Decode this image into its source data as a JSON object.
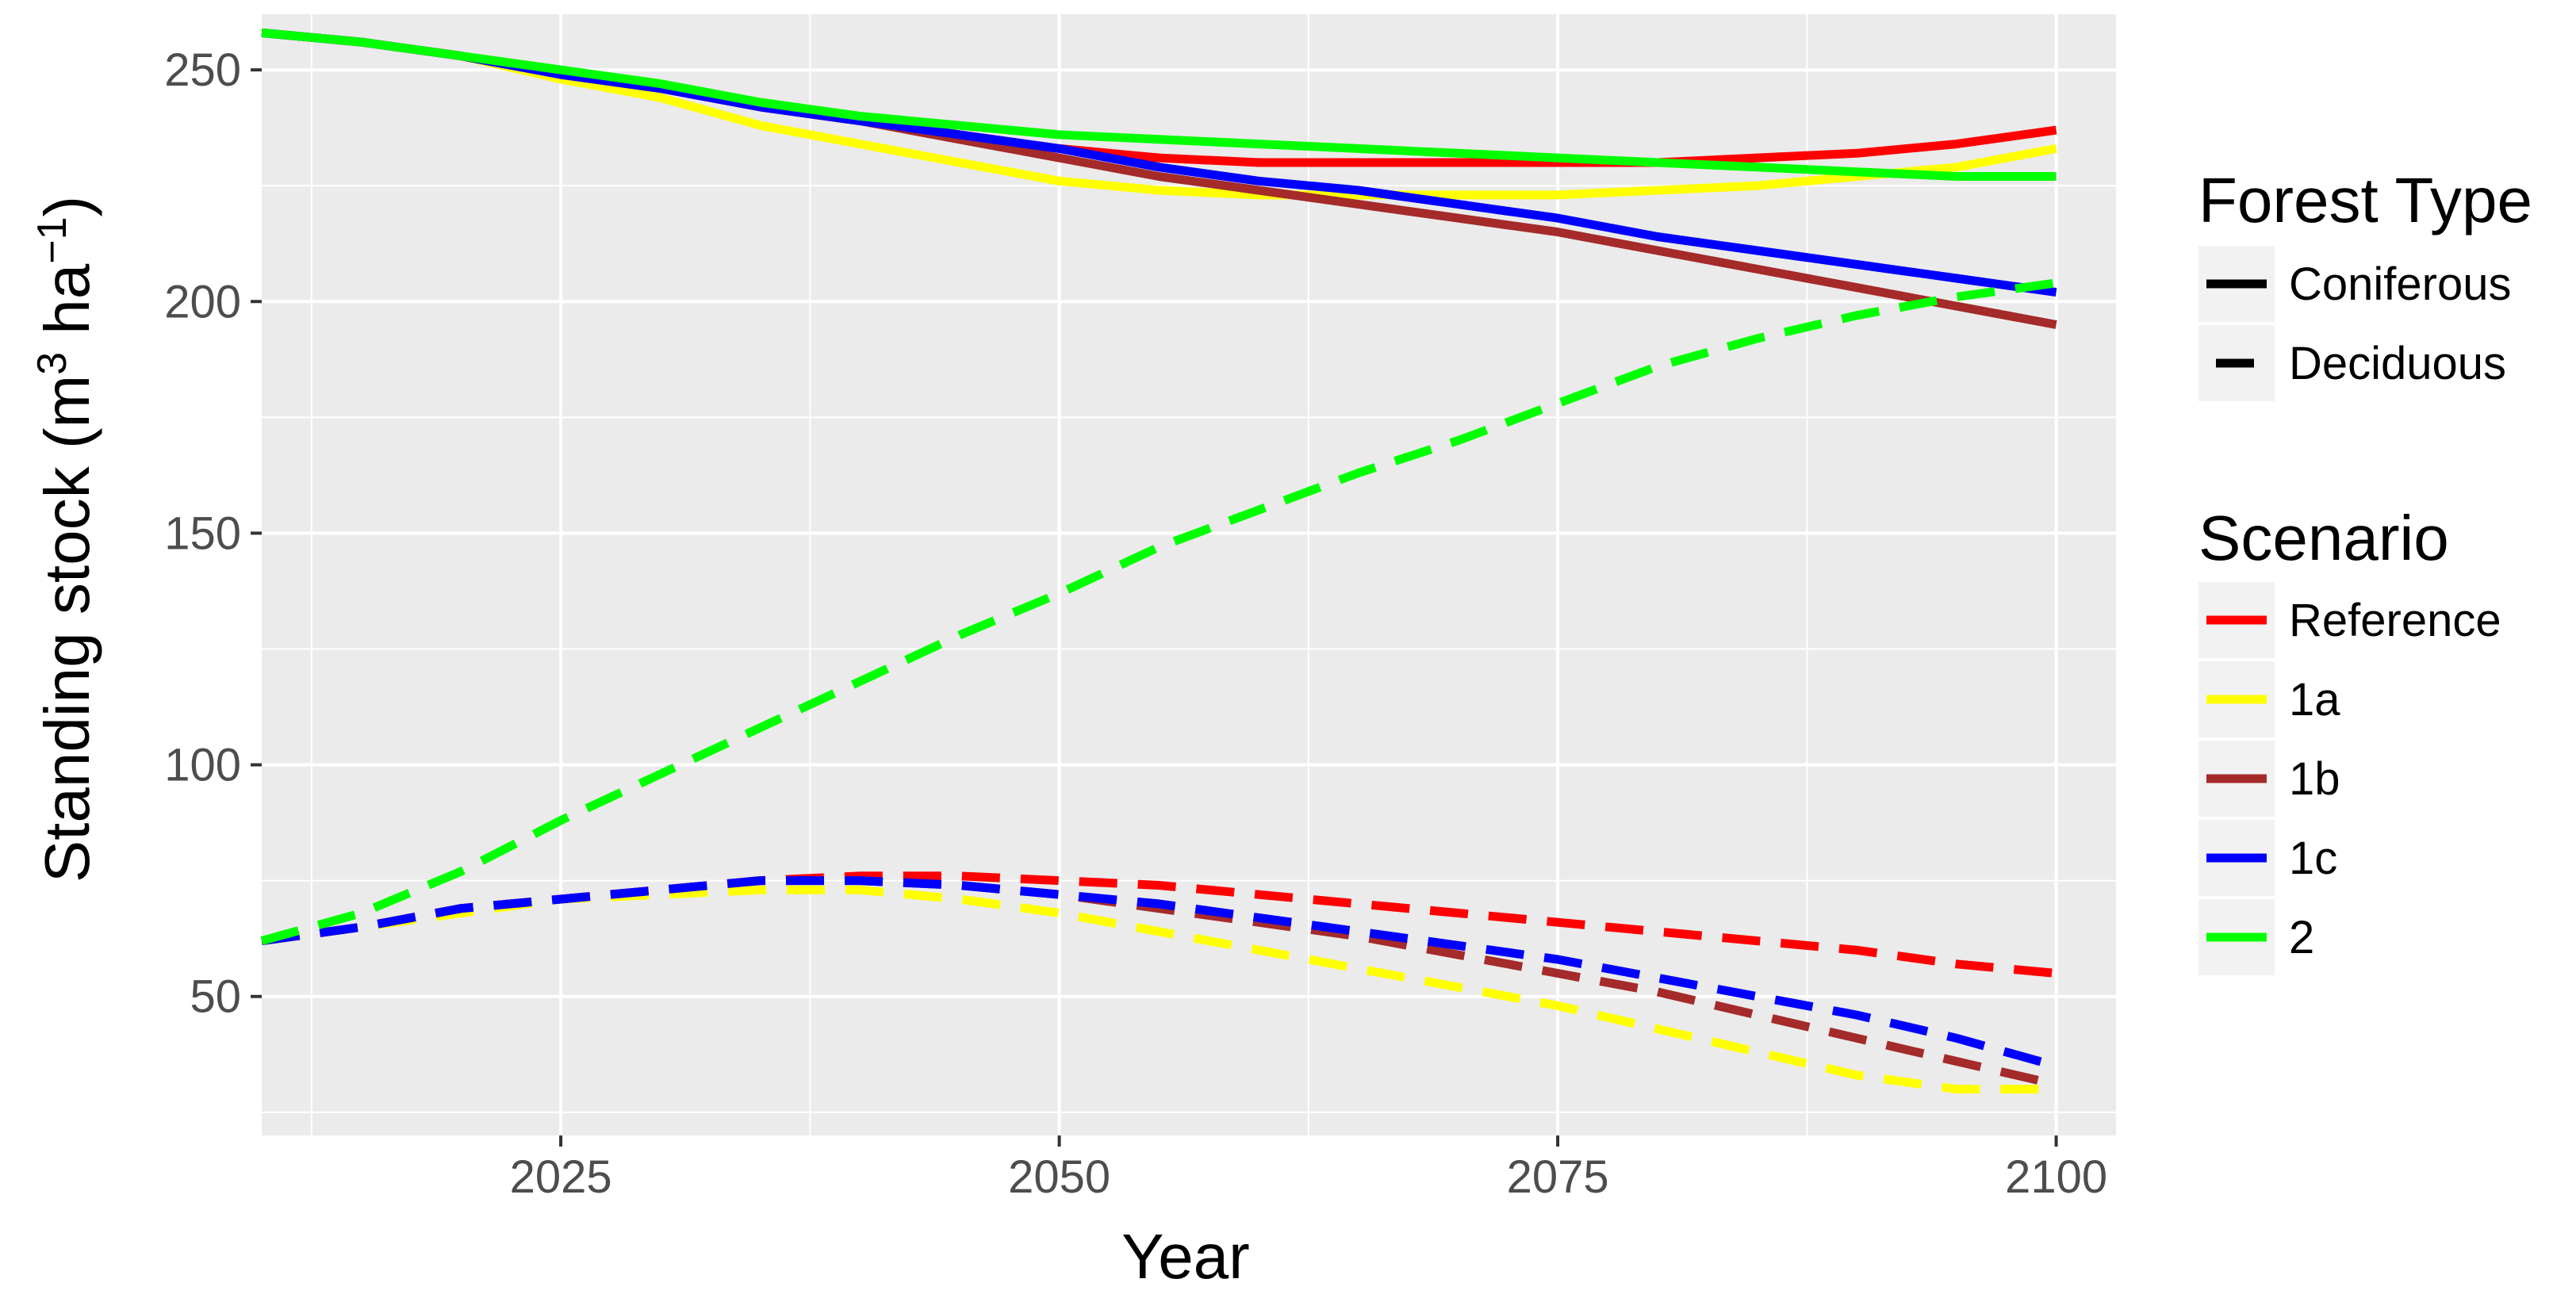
{
  "chart_data": {
    "type": "line",
    "title": "",
    "xlabel": "Year",
    "ylabel": "Standing stock (m3 ha-1)",
    "ylabel_parts": {
      "prefix": "Standing stock (m",
      "sup1": "3",
      "mid": " ha",
      "sup2": "−1",
      "suffix": ")"
    },
    "xlim": [
      2010,
      2103
    ],
    "ylim": [
      20,
      262
    ],
    "xticks": [
      2025,
      2050,
      2075,
      2100
    ],
    "xtick_labels": [
      "2025",
      "2050",
      "2075",
      "2100"
    ],
    "yticks": [
      50,
      100,
      150,
      200,
      250
    ],
    "ytick_labels": [
      "50",
      "100",
      "150",
      "200",
      "250"
    ],
    "grid": true,
    "legend_position": "right",
    "legend": {
      "forest_type": {
        "title": "Forest Type",
        "items": [
          {
            "label": "Coniferous",
            "style": "solid"
          },
          {
            "label": "Deciduous",
            "style": "dashed"
          }
        ]
      },
      "scenario": {
        "title": "Scenario",
        "items": [
          {
            "label": "Reference",
            "color": "#ff0000"
          },
          {
            "label": "1a",
            "color": "#ffff00"
          },
          {
            "label": "1b",
            "color": "#a52a2a"
          },
          {
            "label": "1c",
            "color": "#0000ff"
          },
          {
            "label": "2",
            "color": "#00ff00"
          }
        ]
      }
    },
    "x": [
      2010,
      2015,
      2020,
      2025,
      2030,
      2035,
      2040,
      2045,
      2050,
      2055,
      2060,
      2065,
      2070,
      2075,
      2080,
      2085,
      2090,
      2095,
      2100
    ],
    "series": [
      {
        "name": "Reference",
        "forest_type": "Coniferous",
        "color": "#ff0000",
        "style": "solid",
        "values": [
          258,
          256,
          253,
          249,
          246,
          242,
          239,
          236,
          233,
          231,
          230,
          230,
          230,
          230,
          230,
          231,
          232,
          234,
          237
        ]
      },
      {
        "name": "1a",
        "forest_type": "Coniferous",
        "color": "#ffff00",
        "style": "solid",
        "values": [
          258,
          256,
          253,
          248,
          244,
          238,
          234,
          230,
          226,
          224,
          223,
          223,
          223,
          223,
          224,
          225,
          227,
          229,
          233
        ]
      },
      {
        "name": "1b",
        "forest_type": "Coniferous",
        "color": "#a52a2a",
        "style": "solid",
        "values": [
          258,
          256,
          253,
          249,
          246,
          242,
          239,
          235,
          231,
          227,
          224,
          221,
          218,
          215,
          211,
          207,
          203,
          199,
          195
        ]
      },
      {
        "name": "1c",
        "forest_type": "Coniferous",
        "color": "#0000ff",
        "style": "solid",
        "values": [
          258,
          256,
          253,
          249,
          246,
          242,
          239,
          236,
          233,
          229,
          226,
          224,
          221,
          218,
          214,
          211,
          208,
          205,
          202
        ]
      },
      {
        "name": "2",
        "forest_type": "Coniferous",
        "color": "#00ff00",
        "style": "solid",
        "values": [
          258,
          256,
          253,
          250,
          247,
          243,
          240,
          238,
          236,
          235,
          234,
          233,
          232,
          231,
          230,
          229,
          228,
          227,
          227
        ]
      },
      {
        "name": "Reference",
        "forest_type": "Deciduous",
        "color": "#ff0000",
        "style": "dashed",
        "values": [
          62,
          65,
          69,
          71,
          73,
          75,
          76,
          76,
          75,
          74,
          72,
          70,
          68,
          66,
          64,
          62,
          60,
          57,
          55
        ]
      },
      {
        "name": "1a",
        "forest_type": "Deciduous",
        "color": "#ffff00",
        "style": "dashed",
        "values": [
          62,
          65,
          68,
          71,
          72,
          73,
          73,
          71,
          68,
          64,
          60,
          56,
          52,
          48,
          43,
          38,
          33,
          30,
          30
        ]
      },
      {
        "name": "1b",
        "forest_type": "Deciduous",
        "color": "#a52a2a",
        "style": "dashed",
        "values": [
          62,
          65,
          69,
          71,
          73,
          75,
          75,
          74,
          72,
          69,
          66,
          63,
          59,
          55,
          51,
          46,
          41,
          36,
          31
        ]
      },
      {
        "name": "1c",
        "forest_type": "Deciduous",
        "color": "#0000ff",
        "style": "dashed",
        "values": [
          62,
          65,
          69,
          71,
          73,
          75,
          75,
          74,
          72,
          70,
          67,
          64,
          61,
          58,
          54,
          50,
          46,
          41,
          35
        ]
      },
      {
        "name": "2",
        "forest_type": "Deciduous",
        "color": "#00ff00",
        "style": "dashed",
        "values": [
          62,
          68,
          77,
          88,
          98,
          108,
          118,
          128,
          137,
          147,
          155,
          163,
          170,
          178,
          186,
          192,
          197,
          201,
          204
        ]
      }
    ]
  }
}
